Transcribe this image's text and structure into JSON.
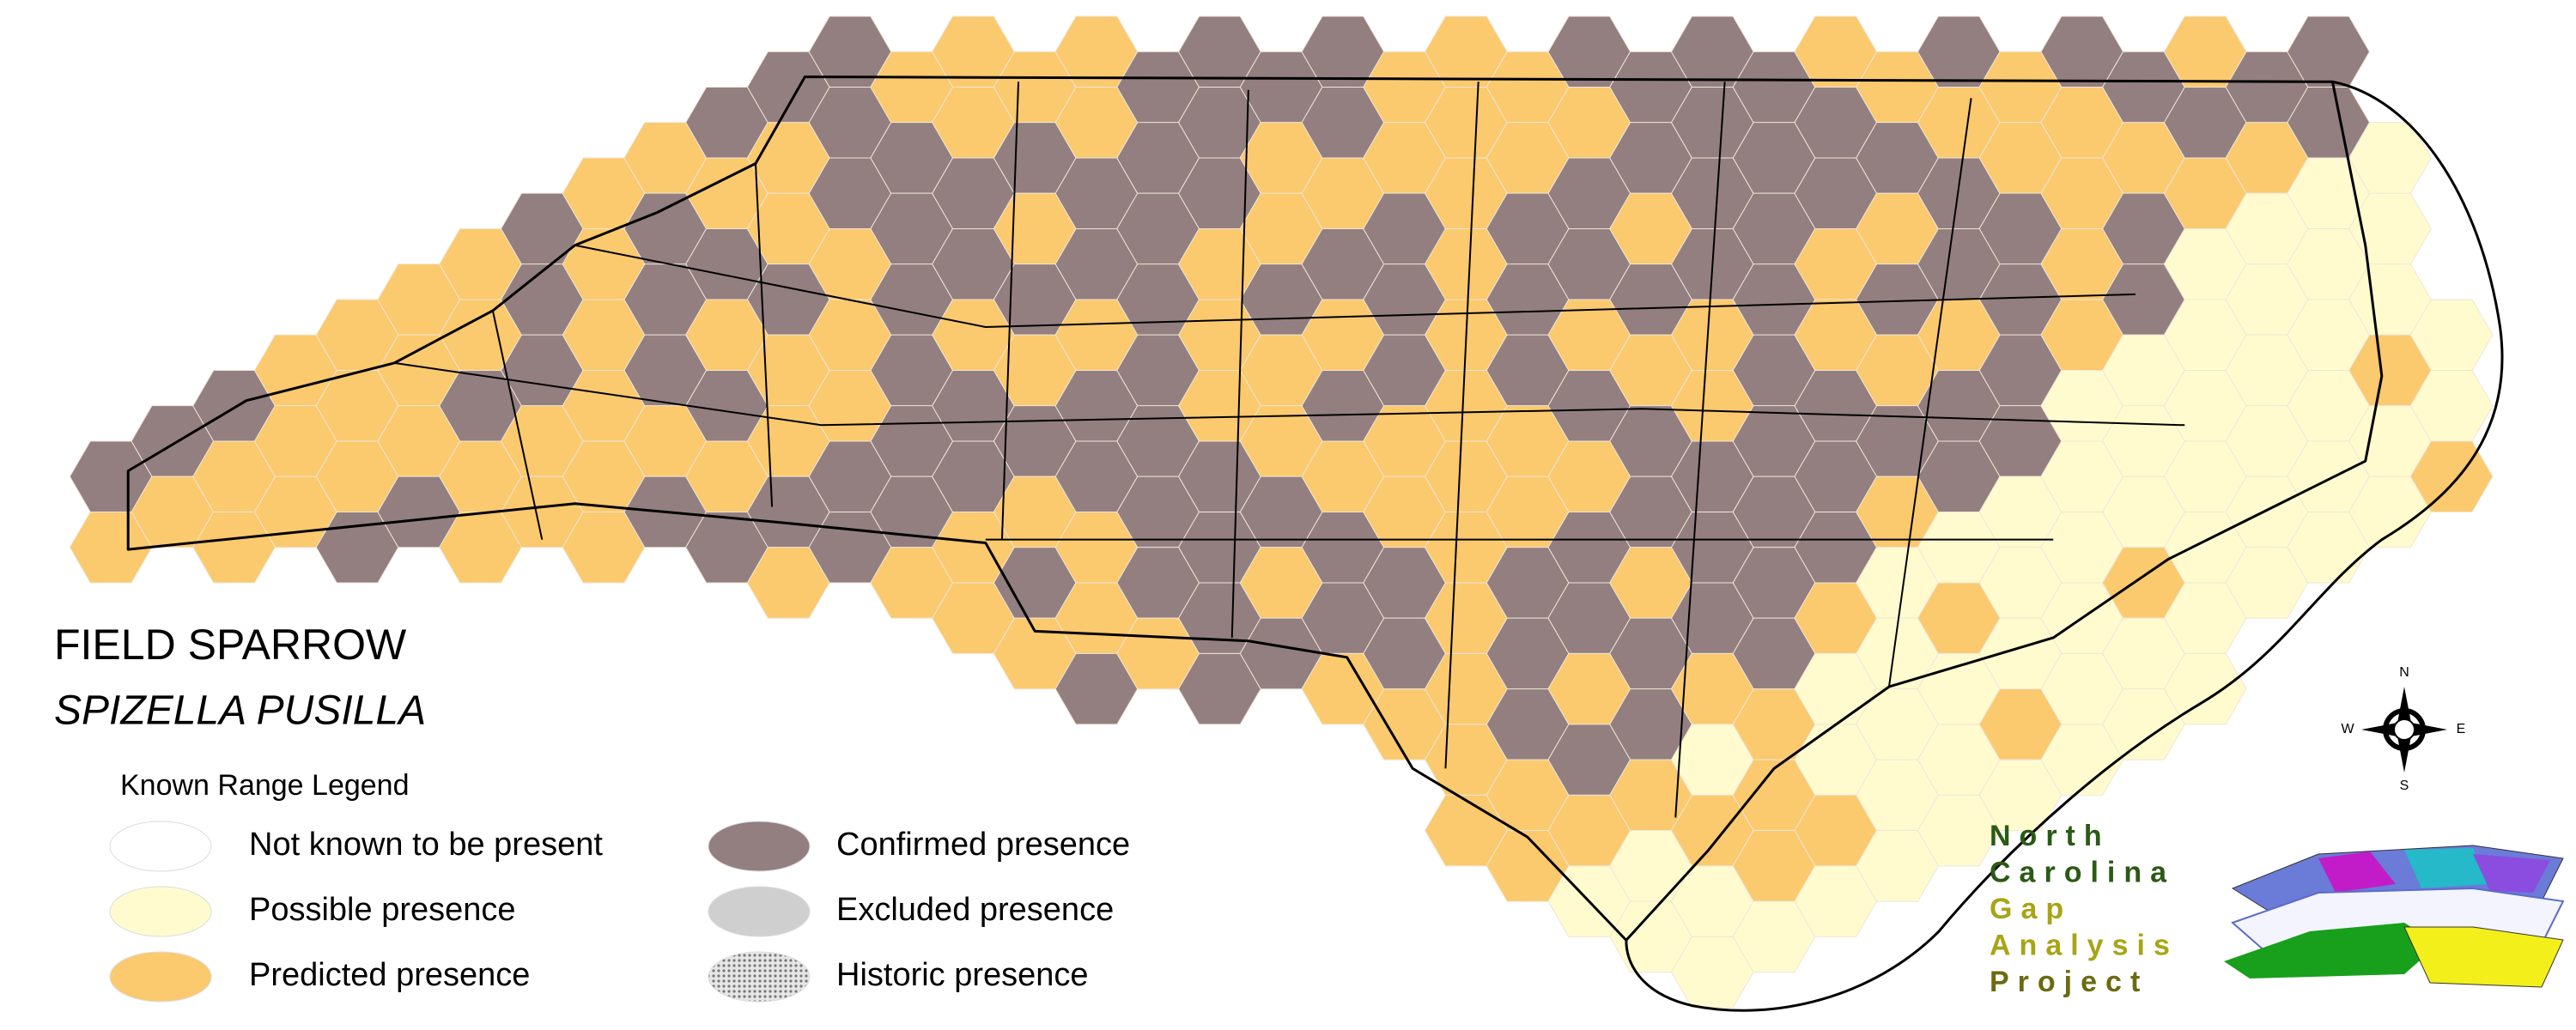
{
  "title": "FIELD SPARROW",
  "subtitle": "SPIZELLA PUSILLA",
  "legend": {
    "title": "Known Range Legend",
    "items": [
      {
        "label": "Not known to be present",
        "color": "#ffffff"
      },
      {
        "label": "Possible presence",
        "color": "#fffbcf"
      },
      {
        "label": "Predicted presence",
        "color": "#fbc96e"
      },
      {
        "label": "Confirmed presence",
        "color": "#937f80"
      },
      {
        "label": "Excluded presence",
        "color": "#cfcfcf"
      },
      {
        "label": "Historic presence",
        "color": "#bdbdbd",
        "hatch": true
      }
    ]
  },
  "compass": {
    "n": "N",
    "s": "S",
    "e": "E",
    "w": "W"
  },
  "logo": {
    "lines": [
      "North",
      "Carolina",
      "Gap",
      "Analysis",
      "Project"
    ]
  }
}
